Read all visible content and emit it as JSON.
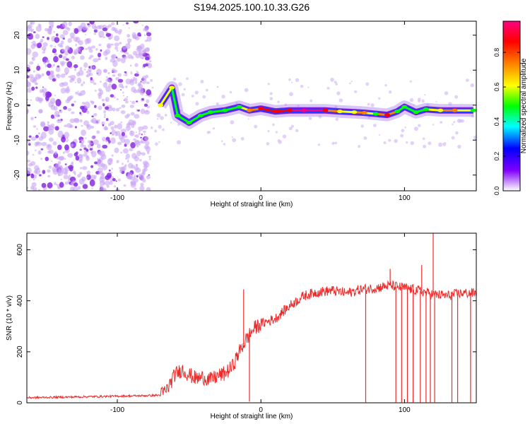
{
  "title": "S194.2025.100.10.33.G26",
  "chart_data": [
    {
      "type": "heatmap",
      "xlabel": "Height of straight line (km)",
      "ylabel": "Frequency (Hz)",
      "xlim": [
        -163,
        150
      ],
      "ylim": [
        -24.5,
        24
      ],
      "xticks": [
        -100,
        0,
        100
      ],
      "yticks": [
        -20,
        -10,
        0,
        10,
        20
      ],
      "colorbar": {
        "label": "Normalized spectral amplitude",
        "ticks": [
          0.0,
          0.2,
          0.4,
          0.6,
          0.8
        ],
        "range": [
          0,
          0.98
        ],
        "colors": [
          "#ffffff",
          "#8000ff",
          "#0000ff",
          "#00ffff",
          "#00ff00",
          "#ffff00",
          "#ff8000",
          "#ff0000",
          "#ff0080"
        ]
      },
      "noise_region_x": [
        -163,
        -77
      ],
      "ridge": [
        {
          "x": -70,
          "y": 0,
          "a": 0.6
        },
        {
          "x": -62,
          "y": 5,
          "a": 0.6
        },
        {
          "x": -58,
          "y": -3,
          "a": 0.45
        },
        {
          "x": -50,
          "y": -5,
          "a": 0.5
        },
        {
          "x": -42,
          "y": -3,
          "a": 0.45
        },
        {
          "x": -35,
          "y": -2,
          "a": 0.5
        },
        {
          "x": -25,
          "y": -1.5,
          "a": 0.45
        },
        {
          "x": -15,
          "y": -0.5,
          "a": 0.55
        },
        {
          "x": -8,
          "y": -1.5,
          "a": 0.7
        },
        {
          "x": 0,
          "y": -1,
          "a": 0.8
        },
        {
          "x": 10,
          "y": -1.8,
          "a": 0.85
        },
        {
          "x": 20,
          "y": -1.5,
          "a": 0.9
        },
        {
          "x": 30,
          "y": -1.5,
          "a": 0.95
        },
        {
          "x": 45,
          "y": -1.5,
          "a": 0.9
        },
        {
          "x": 55,
          "y": -1.8,
          "a": 0.6
        },
        {
          "x": 65,
          "y": -2.0,
          "a": 0.65
        },
        {
          "x": 72,
          "y": -2.2,
          "a": 0.75
        },
        {
          "x": 80,
          "y": -2.5,
          "a": 0.55
        },
        {
          "x": 88,
          "y": -2.8,
          "a": 0.8
        },
        {
          "x": 95,
          "y": -1.8,
          "a": 0.55
        },
        {
          "x": 100,
          "y": -0.5,
          "a": 0.45
        },
        {
          "x": 108,
          "y": -2.0,
          "a": 0.55
        },
        {
          "x": 115,
          "y": -1.2,
          "a": 0.55
        },
        {
          "x": 125,
          "y": -1.5,
          "a": 0.6
        },
        {
          "x": 135,
          "y": -1.5,
          "a": 0.75
        },
        {
          "x": 148,
          "y": -1.5,
          "a": 0.55
        }
      ]
    },
    {
      "type": "line",
      "xlabel": "Height of straight line (km)",
      "ylabel": "SNR (10 * v/v)",
      "xlim": [
        -163,
        150
      ],
      "ylim": [
        0,
        665
      ],
      "xticks": [
        -100,
        0,
        100
      ],
      "yticks": [
        0,
        200,
        400,
        600
      ],
      "series": [
        {
          "color": "#ee2a2a",
          "x": [
            -163,
            -140,
            -120,
            -100,
            -90,
            -80,
            -70,
            -65,
            -60,
            -55,
            -50,
            -45,
            -40,
            -35,
            -30,
            -25,
            -20,
            -15,
            -10,
            -5,
            0,
            10,
            20,
            30,
            40,
            50,
            60,
            70,
            80,
            90,
            100,
            110,
            120,
            130,
            140,
            150
          ],
          "y": [
            20,
            22,
            24,
            26,
            27,
            28,
            30,
            55,
            110,
            130,
            110,
            95,
            100,
            90,
            105,
            115,
            140,
            200,
            250,
            290,
            310,
            330,
            380,
            420,
            435,
            440,
            430,
            445,
            450,
            460,
            450,
            440,
            425,
            420,
            430,
            430
          ]
        }
      ],
      "spikes_up": [
        {
          "x": -12,
          "y": 445
        },
        {
          "x": 112,
          "y": 540
        },
        {
          "x": 120,
          "y": 665
        },
        {
          "x": 90,
          "y": 525
        }
      ],
      "spikes_down": [
        {
          "x": -8,
          "y": 5
        },
        {
          "x": 73,
          "y": 2
        },
        {
          "x": 94,
          "y": 2
        },
        {
          "x": 98,
          "y": 2
        },
        {
          "x": 102,
          "y": 2
        },
        {
          "x": 106,
          "y": 2
        },
        {
          "x": 111,
          "y": 2
        },
        {
          "x": 115,
          "y": 2
        },
        {
          "x": 118,
          "y": 2
        },
        {
          "x": 121,
          "y": 2
        },
        {
          "x": 133,
          "y": 2
        },
        {
          "x": 137,
          "y": 2
        },
        {
          "x": 146,
          "y": 2
        }
      ]
    }
  ]
}
